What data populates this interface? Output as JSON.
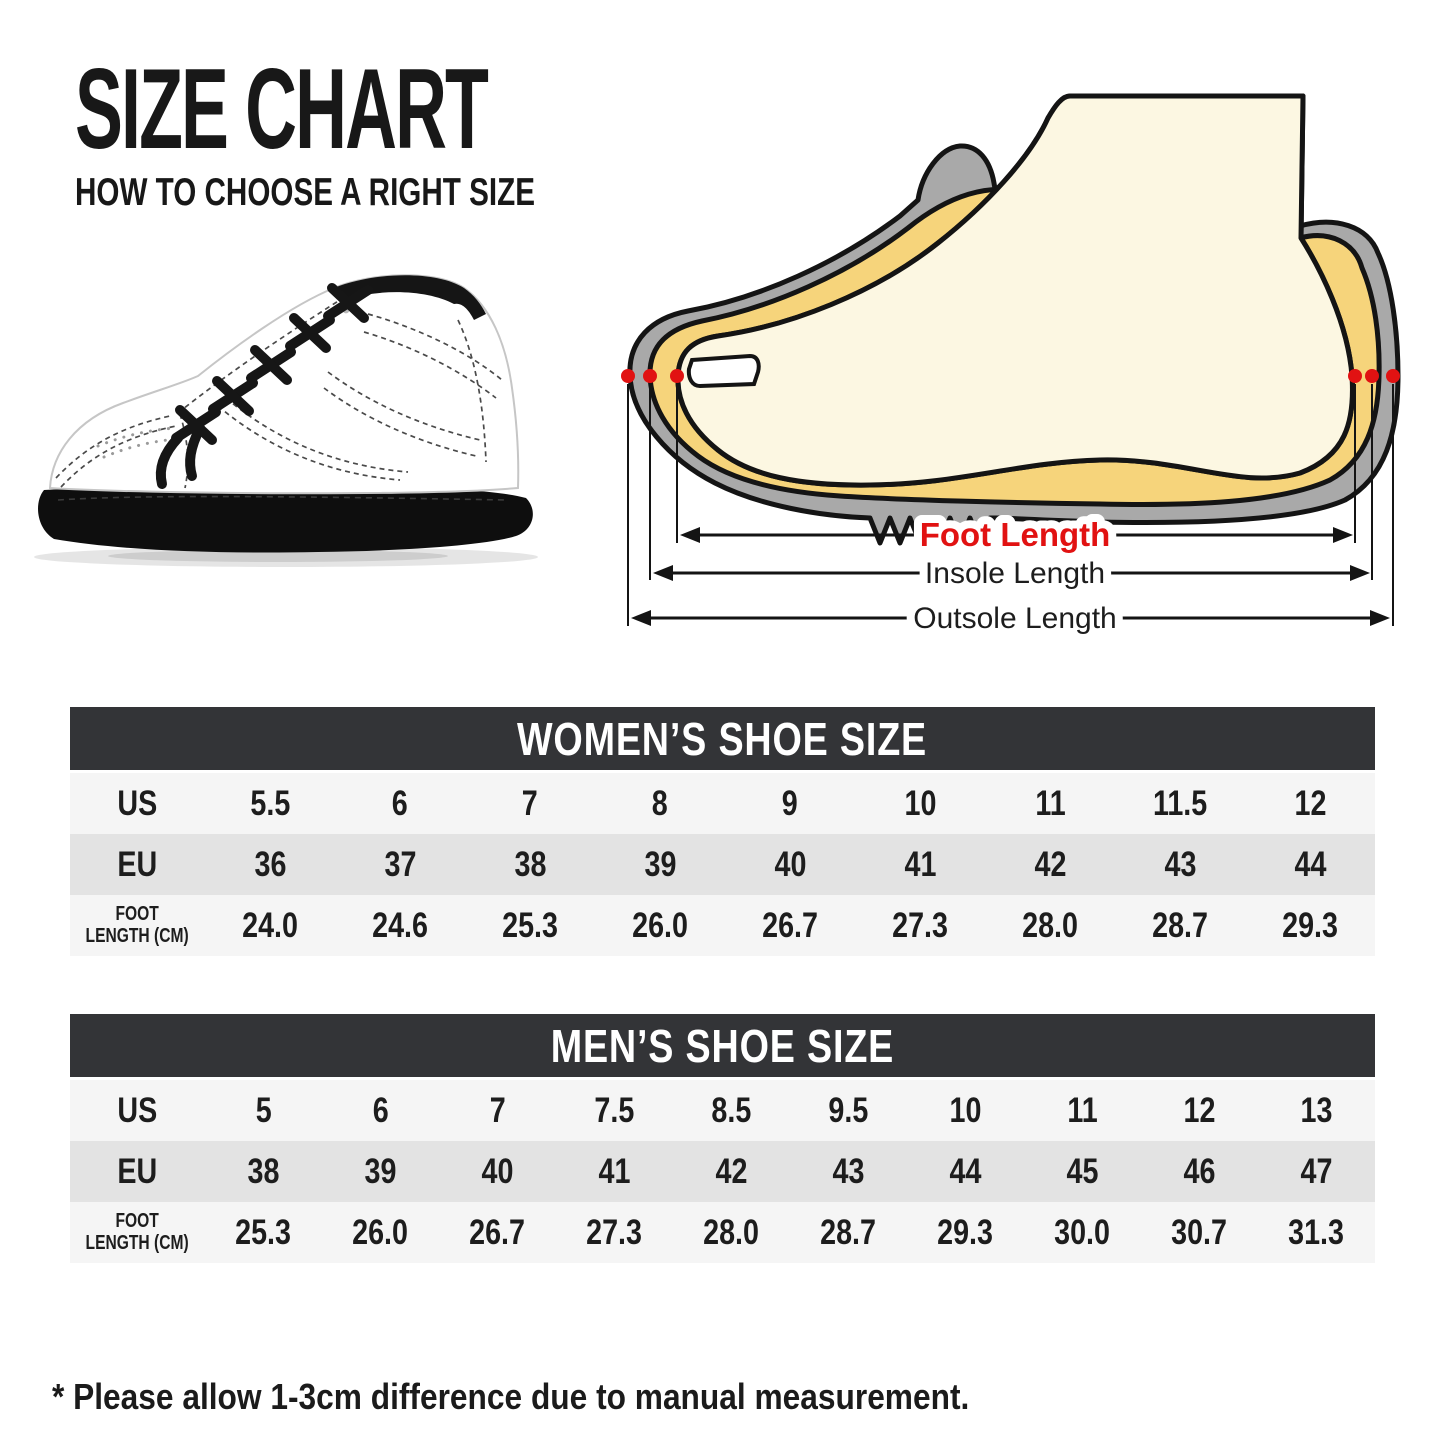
{
  "header": {
    "title": "SIZE CHART",
    "subtitle": "HOW TO CHOOSE A RIGHT SIZE"
  },
  "diagram": {
    "foot_length_label": "Foot Length",
    "insole_length_label": "Insole Length",
    "outsole_length_label": "Outsole Length",
    "colors": {
      "shoe_gray": "#a9a9a9",
      "insole_yellow": "#f6d47b",
      "foot_cream": "#fcf7e2",
      "foot_shadow": "#f2ebcd",
      "marker_red": "#e11212",
      "outline": "#141414"
    }
  },
  "shoe_image": {
    "colors": {
      "upper": "#ffffff",
      "sole": "#0e0e0e",
      "laces": "#161616"
    }
  },
  "tables": [
    {
      "id": "womens",
      "title": "WOMEN’S SHOE SIZE",
      "rows": [
        {
          "label_lines": [
            "US"
          ],
          "values": [
            "5.5",
            "6",
            "7",
            "8",
            "9",
            "10",
            "11",
            "11.5",
            "12"
          ]
        },
        {
          "label_lines": [
            "EU"
          ],
          "values": [
            "36",
            "37",
            "38",
            "39",
            "40",
            "41",
            "42",
            "43",
            "44"
          ]
        },
        {
          "label_lines": [
            "FOOT",
            "LENGTH (CM)"
          ],
          "values": [
            "24.0",
            "24.6",
            "25.3",
            "26.0",
            "26.7",
            "27.3",
            "28.0",
            "28.7",
            "29.3"
          ]
        }
      ]
    },
    {
      "id": "mens",
      "title": "MEN’S SHOE SIZE",
      "rows": [
        {
          "label_lines": [
            "US"
          ],
          "values": [
            "5",
            "6",
            "7",
            "7.5",
            "8.5",
            "9.5",
            "10",
            "11",
            "12",
            "13"
          ]
        },
        {
          "label_lines": [
            "EU"
          ],
          "values": [
            "38",
            "39",
            "40",
            "41",
            "42",
            "43",
            "44",
            "45",
            "46",
            "47"
          ]
        },
        {
          "label_lines": [
            "FOOT",
            "LENGTH (CM)"
          ],
          "values": [
            "25.3",
            "26.0",
            "26.7",
            "27.3",
            "28.0",
            "28.7",
            "29.3",
            "30.0",
            "30.7",
            "31.3"
          ]
        }
      ]
    }
  ],
  "footnote": "* Please allow 1-3cm difference due to manual measurement."
}
